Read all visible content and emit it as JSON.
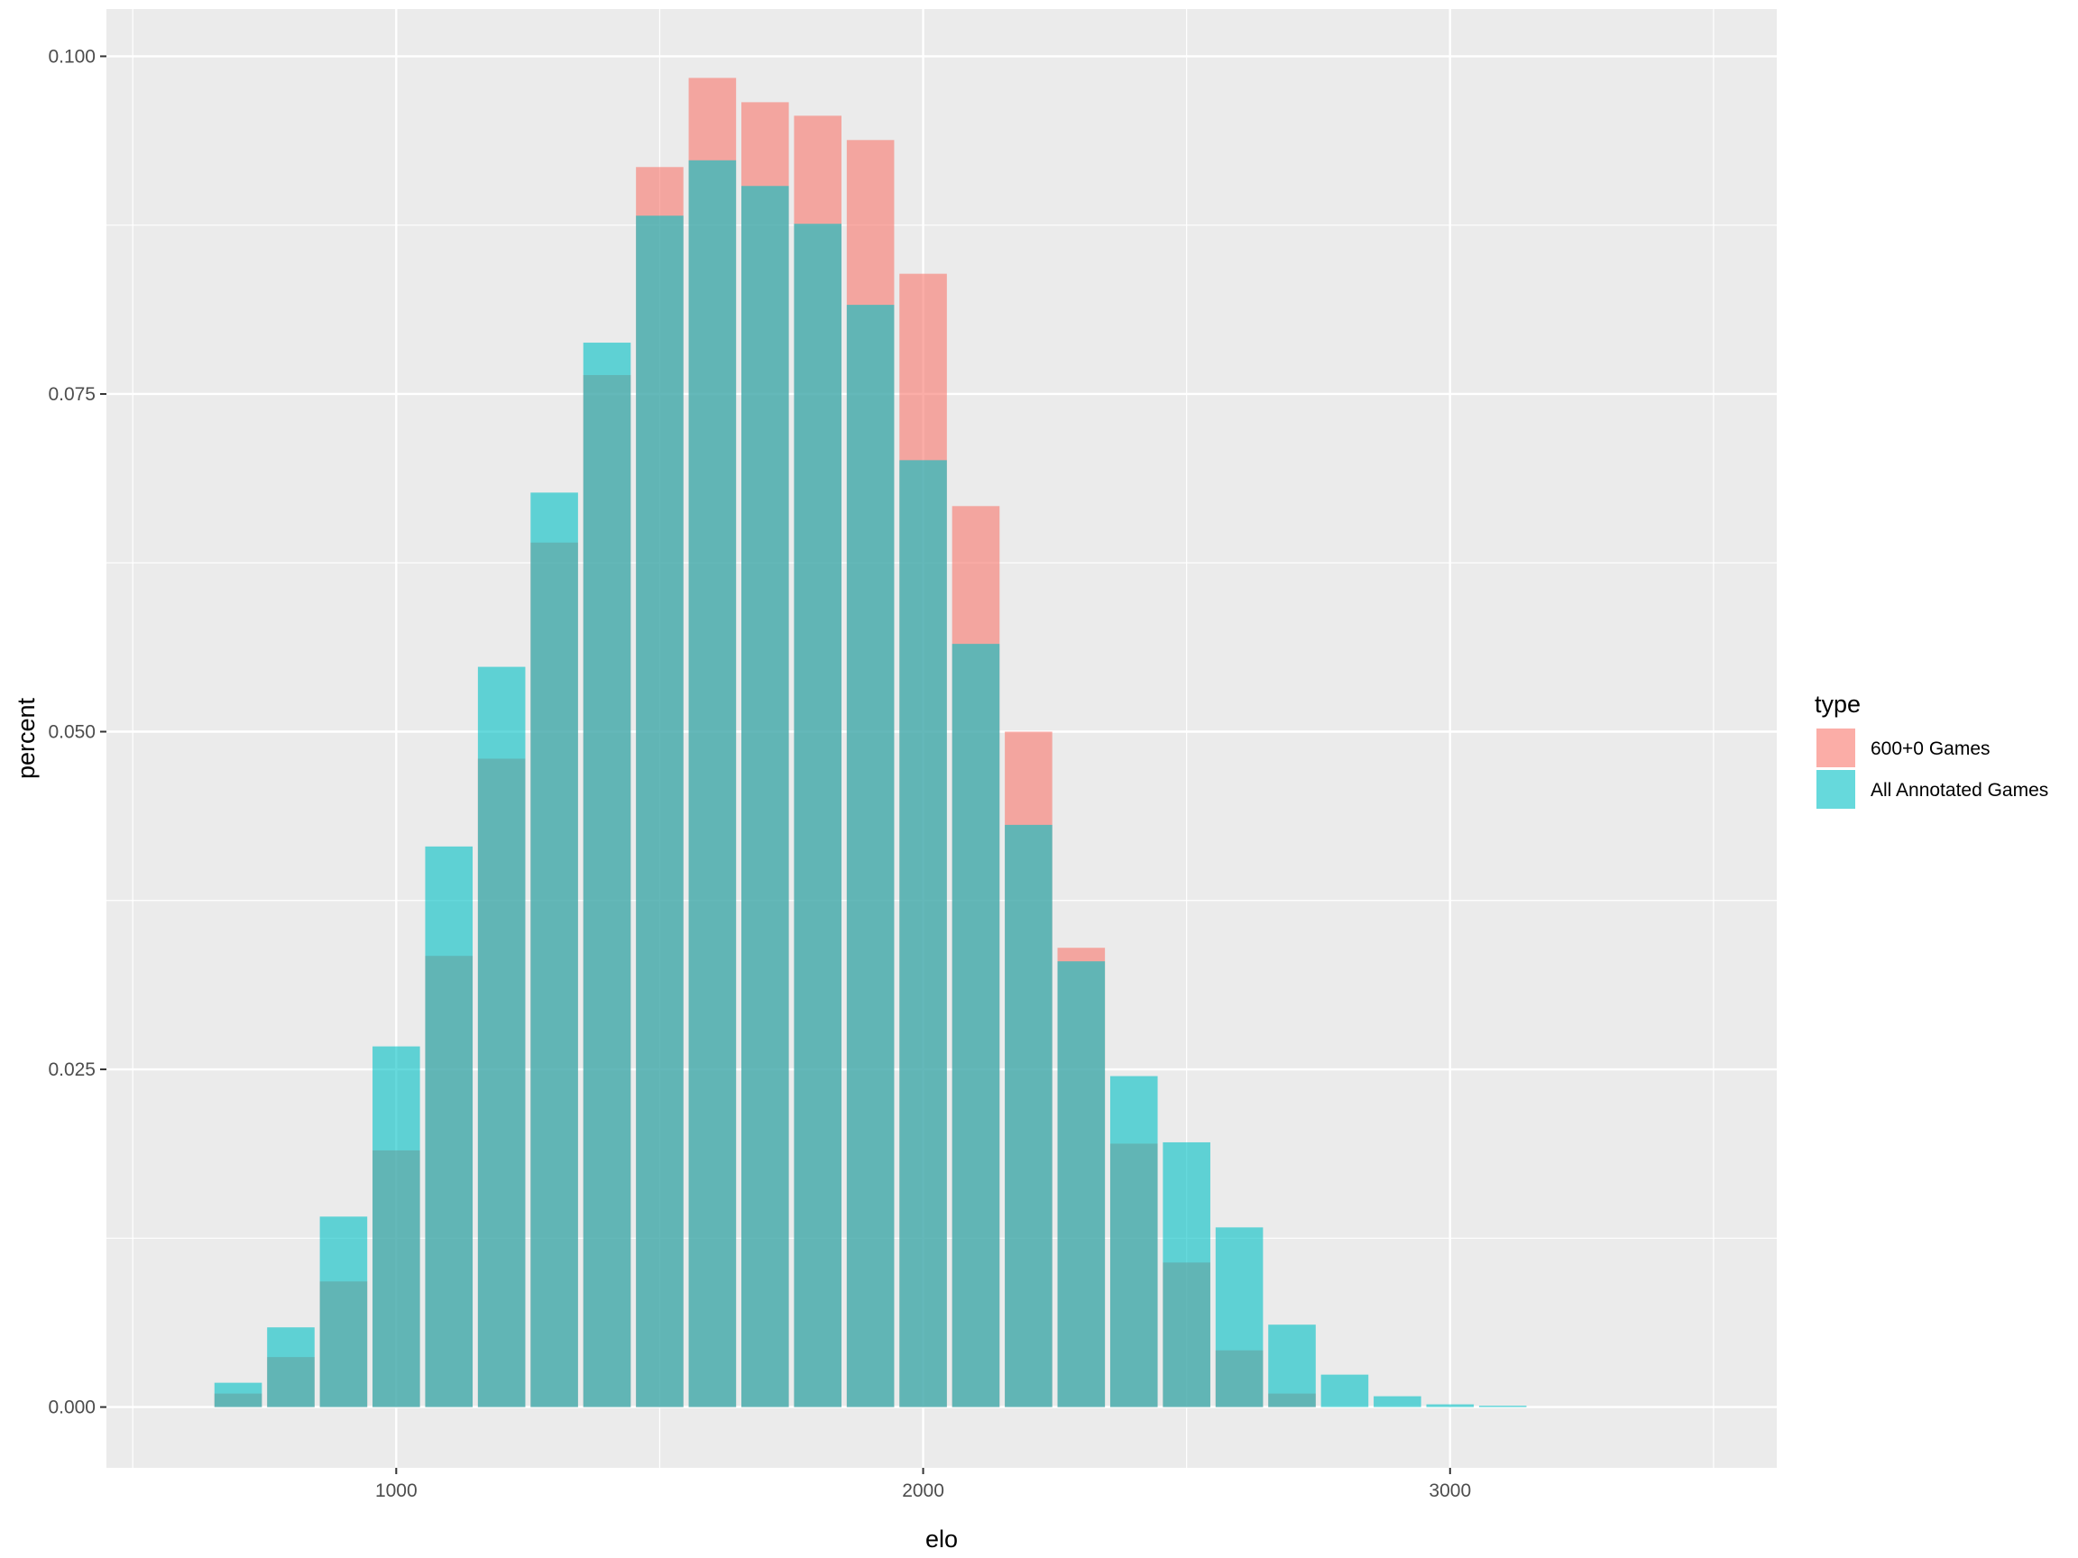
{
  "chart_data": {
    "type": "bar",
    "xlabel": "elo",
    "ylabel": "percent",
    "xlim": [
      450,
      3620
    ],
    "ylim": [
      -0.0045,
      0.1035
    ],
    "x_ticks": [
      1000,
      2000,
      3000
    ],
    "x_tick_labels": [
      "1000",
      "2000",
      "3000"
    ],
    "y_ticks": [
      0.0,
      0.025,
      0.05,
      0.075,
      0.1
    ],
    "y_tick_labels": [
      "0.000",
      "0.025",
      "0.050",
      "0.075",
      "0.100"
    ],
    "bin_width": 100,
    "bar_width_data": 90,
    "grid": true,
    "legend": {
      "title": "type",
      "position": "right",
      "entries": [
        "600+0 Games",
        "All Annotated Games"
      ]
    },
    "x": [
      700,
      800,
      900,
      1000,
      1100,
      1200,
      1300,
      1400,
      1500,
      1600,
      1700,
      1800,
      1900,
      2000,
      2100,
      2200,
      2300,
      2400,
      2500,
      2600,
      2700,
      2800,
      2900,
      3000,
      3100,
      3200,
      3300,
      3400
    ],
    "series": [
      {
        "name": "600+0 Games",
        "color": "#F8766D",
        "values": [
          0.001,
          0.0037,
          0.0093,
          0.019,
          0.0334,
          0.048,
          0.064,
          0.0764,
          0.0918,
          0.0984,
          0.0966,
          0.0956,
          0.0938,
          0.0839,
          0.0667,
          0.05,
          0.034,
          0.0195,
          0.0107,
          0.0042,
          0.001,
          0.0,
          0.0,
          0.0,
          0.0,
          0.0,
          0.0,
          0.0
        ]
      },
      {
        "name": "All Annotated Games",
        "color": "#00BFC4",
        "values": [
          0.0018,
          0.0059,
          0.0141,
          0.0267,
          0.0415,
          0.0548,
          0.0677,
          0.0788,
          0.0882,
          0.0923,
          0.0904,
          0.0876,
          0.0816,
          0.0701,
          0.0565,
          0.0431,
          0.033,
          0.0245,
          0.0196,
          0.0133,
          0.0061,
          0.0024,
          0.0008,
          0.0002,
          0.0001,
          0.0,
          0.0,
          0.0
        ]
      }
    ]
  }
}
